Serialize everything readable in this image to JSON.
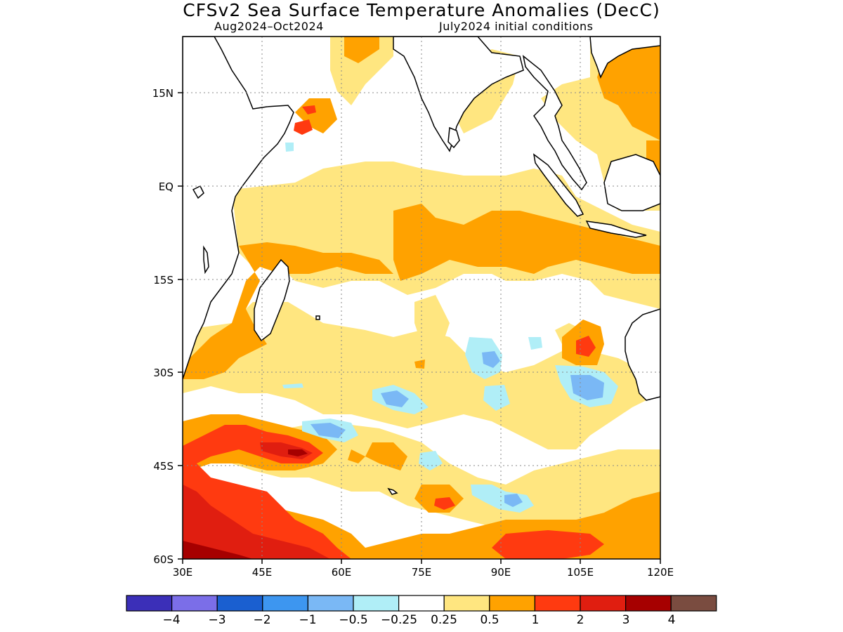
{
  "title": "CFSv2 Sea Surface Temperature Anomalies (DecC)",
  "subtitle_left": "Aug2024–Oct2024",
  "subtitle_right": "July2024 initial conditions",
  "map": {
    "lon_range": [
      30,
      120
    ],
    "lat_range": [
      -60,
      24
    ],
    "x_ticks": [
      "30E",
      "45E",
      "60E",
      "75E",
      "90E",
      "105E",
      "120E"
    ],
    "y_ticks": [
      "15N",
      "EQ",
      "15S",
      "30S",
      "45S",
      "60S"
    ],
    "grid": "dotted"
  },
  "colorbar": {
    "labels": [
      "−4",
      "−3",
      "−2",
      "−1",
      "−0.5",
      "−0.25",
      "0.25",
      "0.5",
      "1",
      "2",
      "3",
      "4"
    ],
    "colors": [
      "#3b2fb8",
      "#7b6ee8",
      "#1a5fd0",
      "#3d96f0",
      "#7ab8f5",
      "#b0eef7",
      "#ffffff",
      "#ffe680",
      "#ffa200",
      "#ff3a10",
      "#e01e10",
      "#a60000",
      "#7a4c40"
    ]
  },
  "colors": {
    "light_pos": "#ffe680",
    "orange": "#ffa200",
    "red": "#ff3a10",
    "dark_red": "#e01e10",
    "darkest_red": "#a60000",
    "light_blue": "#b0eef7",
    "blue": "#7ab8f5"
  }
}
